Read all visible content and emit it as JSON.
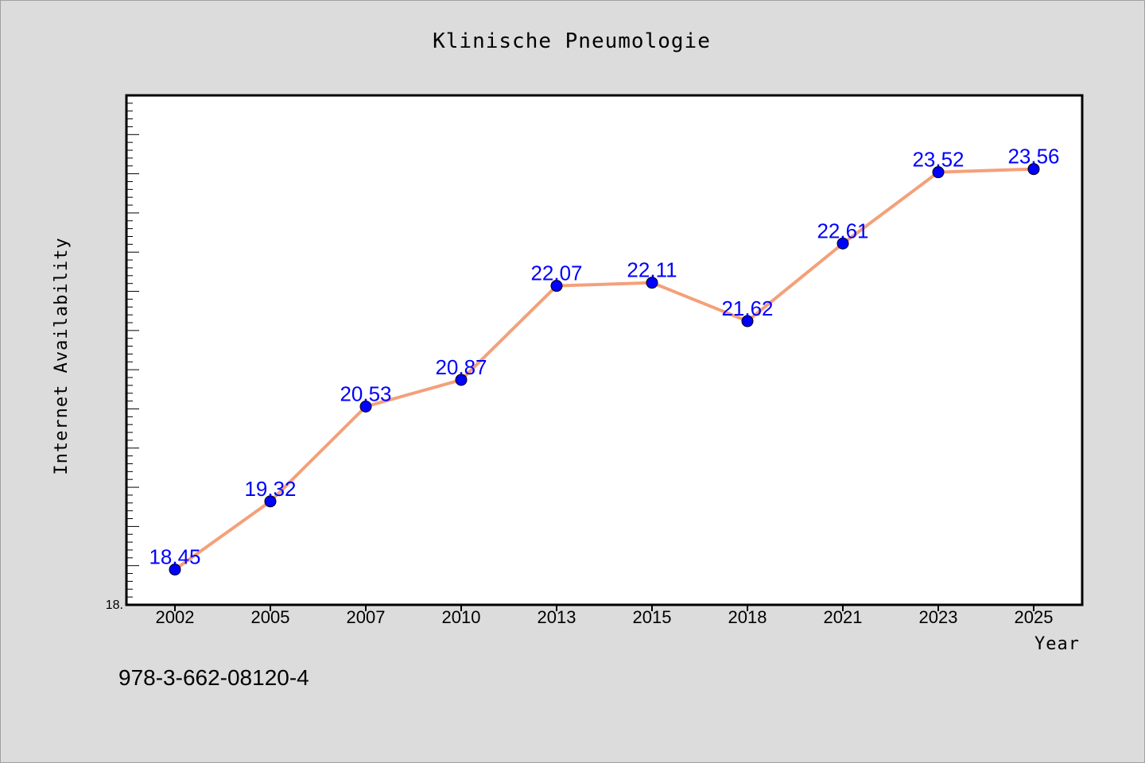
{
  "chart_data": {
    "type": "line",
    "title": "Klinische Pneumologie",
    "xlabel": "Year",
    "ylabel": "Internet Availability",
    "categories": [
      "2002",
      "2005",
      "2007",
      "2010",
      "2013",
      "2015",
      "2018",
      "2021",
      "2023",
      "2025"
    ],
    "series": [
      {
        "values": [
          18.45,
          19.32,
          20.53,
          20.87,
          22.07,
          22.11,
          21.62,
          22.61,
          23.52,
          23.56
        ],
        "data_labels": [
          "18.45",
          "19.32",
          "20.53",
          "20.87",
          "22.07",
          "22.11",
          "21.62",
          "22.61",
          "23.52",
          "23.56"
        ],
        "line_color": "#f4a07a",
        "marker_color": "#0000ff"
      }
    ],
    "ylim": [
      18.0,
      24.5
    ],
    "y_tick_label": "18.",
    "grid": false,
    "legend": "none"
  },
  "footer": {
    "isbn": "978-3-662-08120-4"
  },
  "colors": {
    "background": "#dcdcdc",
    "plot_background": "#ffffff",
    "line": "#f4a07a",
    "marker": "#0000ff",
    "data_label": "#0000ff"
  }
}
